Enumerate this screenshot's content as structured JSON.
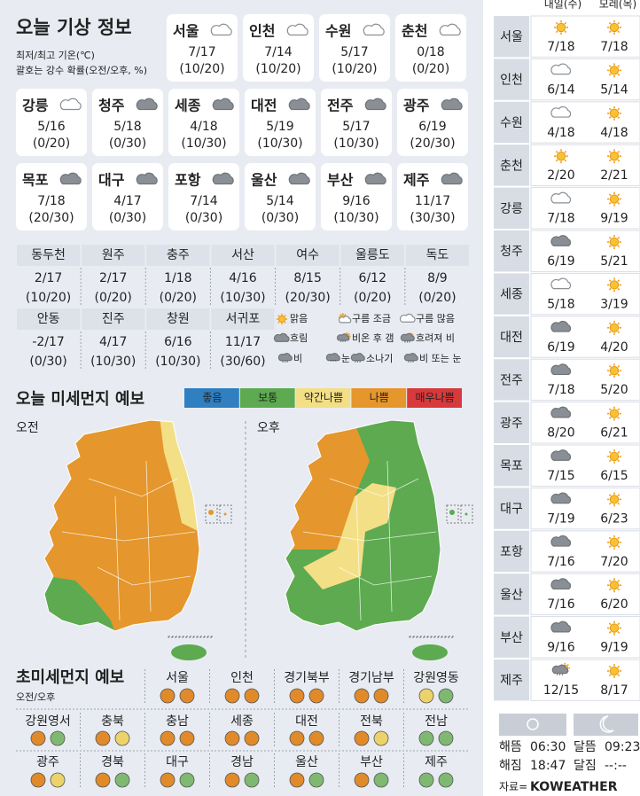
{
  "header": {
    "title": "오늘 기상 정보",
    "notes": [
      "최저/최고 기온(℃)",
      "괄호는 강수 확률(오전/오후, %)"
    ]
  },
  "main_cities": [
    {
      "name": "서울",
      "temp": "7/17",
      "rain": "(10/20)"
    },
    {
      "name": "인천",
      "temp": "7/14",
      "rain": "(10/20)"
    },
    {
      "name": "수원",
      "temp": "5/17",
      "rain": "(10/20)"
    },
    {
      "name": "춘천",
      "temp": "0/18",
      "rain": "(0/20)"
    },
    {
      "name": "강릉",
      "temp": "5/16",
      "rain": "(0/20)"
    },
    {
      "name": "청주",
      "temp": "5/18",
      "rain": "(0/30)"
    },
    {
      "name": "세종",
      "temp": "4/18",
      "rain": "(10/30)"
    },
    {
      "name": "대전",
      "temp": "5/19",
      "rain": "(10/30)"
    },
    {
      "name": "전주",
      "temp": "5/17",
      "rain": "(10/30)"
    },
    {
      "name": "광주",
      "temp": "6/19",
      "rain": "(20/30)"
    },
    {
      "name": "목포",
      "temp": "7/18",
      "rain": "(20/30)"
    },
    {
      "name": "대구",
      "temp": "4/17",
      "rain": "(0/30)"
    },
    {
      "name": "포항",
      "temp": "7/14",
      "rain": "(0/30)"
    },
    {
      "name": "울산",
      "temp": "5/14",
      "rain": "(0/30)"
    },
    {
      "name": "부산",
      "temp": "9/16",
      "rain": "(10/30)"
    },
    {
      "name": "제주",
      "temp": "11/17",
      "rain": "(30/30)"
    }
  ],
  "other_cities": [
    {
      "name": "동두천",
      "temp": "2/17",
      "rain": "(10/20)"
    },
    {
      "name": "원주",
      "temp": "2/17",
      "rain": "(0/20)"
    },
    {
      "name": "충주",
      "temp": "1/18",
      "rain": "(0/20)"
    },
    {
      "name": "서산",
      "temp": "4/16",
      "rain": "(10/30)"
    },
    {
      "name": "여수",
      "temp": "8/15",
      "rain": "(20/30)"
    },
    {
      "name": "울릉도",
      "temp": "6/12",
      "rain": "(0/20)"
    },
    {
      "name": "독도",
      "temp": "8/9",
      "rain": "(0/20)"
    },
    {
      "name": "안동",
      "temp": "-2/17",
      "rain": "(0/30)"
    },
    {
      "name": "진주",
      "temp": "4/17",
      "rain": "(10/30)"
    },
    {
      "name": "창원",
      "temp": "6/16",
      "rain": "(10/30)"
    },
    {
      "name": "서귀포",
      "temp": "11/17",
      "rain": "(30/60)"
    }
  ],
  "weather_legend": [
    "맑음",
    "구름 조금",
    "구름 많음",
    "흐림",
    "비온 후 갬",
    "흐려져 비",
    "비",
    "눈",
    "소나기",
    "비 또는 눈"
  ],
  "dust": {
    "title": "오늘 미세먼지 예보",
    "levels": [
      {
        "label": "좋음",
        "color": "#2f7fc1"
      },
      {
        "label": "보통",
        "color": "#5daa50"
      },
      {
        "label": "약간나쁨",
        "color": "#f3df86"
      },
      {
        "label": "나쁨",
        "color": "#e5962c"
      },
      {
        "label": "매우나쁨",
        "color": "#d8393b"
      }
    ],
    "maps": [
      "오전",
      "오후"
    ]
  },
  "ultrafine": {
    "title": "초미세먼지 예보",
    "subtitle": "오전/오후",
    "regions": [
      {
        "name": "서울",
        "colors": [
          "#e08a2a",
          "#e08a2a"
        ]
      },
      {
        "name": "인천",
        "colors": [
          "#e08a2a",
          "#e08a2a"
        ]
      },
      {
        "name": "경기북부",
        "colors": [
          "#e08a2a",
          "#e08a2a"
        ]
      },
      {
        "name": "경기남부",
        "colors": [
          "#e08a2a",
          "#e08a2a"
        ]
      },
      {
        "name": "강원영동",
        "colors": [
          "#ecd26a",
          "#7fb971"
        ]
      },
      {
        "name": "강원영서",
        "colors": [
          "#e08a2a",
          "#7fb971"
        ]
      },
      {
        "name": "충북",
        "colors": [
          "#e08a2a",
          "#ecd26a"
        ]
      },
      {
        "name": "충남",
        "colors": [
          "#e08a2a",
          "#e08a2a"
        ]
      },
      {
        "name": "세종",
        "colors": [
          "#e08a2a",
          "#e08a2a"
        ]
      },
      {
        "name": "대전",
        "colors": [
          "#e08a2a",
          "#e08a2a"
        ]
      },
      {
        "name": "전북",
        "colors": [
          "#e08a2a",
          "#ecd26a"
        ]
      },
      {
        "name": "전남",
        "colors": [
          "#7fb971",
          "#7fb971"
        ]
      },
      {
        "name": "광주",
        "colors": [
          "#e08a2a",
          "#ecd26a"
        ]
      },
      {
        "name": "경북",
        "colors": [
          "#e08a2a",
          "#7fb971"
        ]
      },
      {
        "name": "대구",
        "colors": [
          "#e08a2a",
          "#7fb971"
        ]
      },
      {
        "name": "경남",
        "colors": [
          "#e08a2a",
          "#7fb971"
        ]
      },
      {
        "name": "울산",
        "colors": [
          "#e08a2a",
          "#7fb971"
        ]
      },
      {
        "name": "부산",
        "colors": [
          "#e08a2a",
          "#7fb971"
        ]
      },
      {
        "name": "제주",
        "colors": [
          "#7fb971",
          "#7fb971"
        ]
      }
    ]
  },
  "forecast": {
    "days": [
      "내일(수)",
      "모레(목)"
    ],
    "cities": [
      {
        "name": "서울",
        "temps": [
          "7/18",
          "7/18"
        ]
      },
      {
        "name": "인천",
        "temps": [
          "6/14",
          "5/14"
        ]
      },
      {
        "name": "수원",
        "temps": [
          "4/18",
          "4/18"
        ]
      },
      {
        "name": "춘천",
        "temps": [
          "2/20",
          "2/21"
        ]
      },
      {
        "name": "강릉",
        "temps": [
          "7/18",
          "9/19"
        ]
      },
      {
        "name": "청주",
        "temps": [
          "6/19",
          "5/21"
        ]
      },
      {
        "name": "세종",
        "temps": [
          "5/18",
          "3/19"
        ]
      },
      {
        "name": "대전",
        "temps": [
          "6/19",
          "4/20"
        ]
      },
      {
        "name": "전주",
        "temps": [
          "7/18",
          "5/20"
        ]
      },
      {
        "name": "광주",
        "temps": [
          "8/20",
          "6/21"
        ]
      },
      {
        "name": "목포",
        "temps": [
          "7/15",
          "6/15"
        ]
      },
      {
        "name": "대구",
        "temps": [
          "7/19",
          "6/23"
        ]
      },
      {
        "name": "포항",
        "temps": [
          "7/16",
          "7/20"
        ]
      },
      {
        "name": "울산",
        "temps": [
          "7/16",
          "6/20"
        ]
      },
      {
        "name": "부산",
        "temps": [
          "9/16",
          "9/19"
        ]
      },
      {
        "name": "제주",
        "temps": [
          "12/15",
          "8/17"
        ]
      }
    ]
  },
  "astro": [
    {
      "label": "해뜸",
      "time": "06:30"
    },
    {
      "label": "해짐",
      "time": "18:47"
    },
    {
      "label": "달뜸",
      "time": "09:23"
    },
    {
      "label": "달짐",
      "time": "--:--"
    }
  ],
  "source": {
    "prefix": "자료=",
    "brand": "KOWEATHER"
  }
}
